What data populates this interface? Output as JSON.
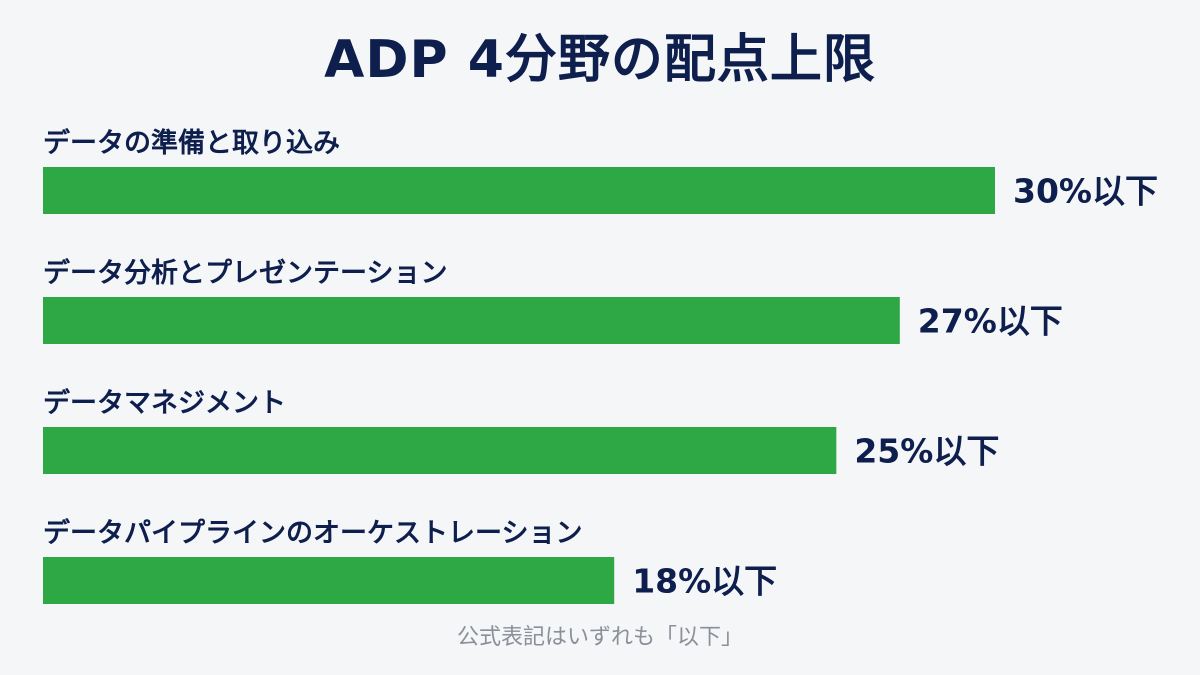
{
  "chart_data": {
    "type": "bar",
    "orientation": "horizontal",
    "title": "ADP 4分野の配点上限",
    "categories": [
      "データの準備と取り込み",
      "データ分析とプレゼンテーション",
      "データマネジメント",
      "データパイプラインのオーケストレーション"
    ],
    "values": [
      30,
      27,
      25,
      18
    ],
    "value_labels": [
      "30%以下",
      "27%以下",
      "25%以下",
      "18%以下"
    ],
    "unit": "%",
    "xlim": [
      0,
      30
    ],
    "grid": false,
    "bar_color": "#2ea844",
    "footnote": "公式表記はいずれも「以下」"
  },
  "colors": {
    "background": "#f5f6f8",
    "text": "#0e1f4d",
    "bar": "#2ea844",
    "footnote": "#8a8f99"
  }
}
